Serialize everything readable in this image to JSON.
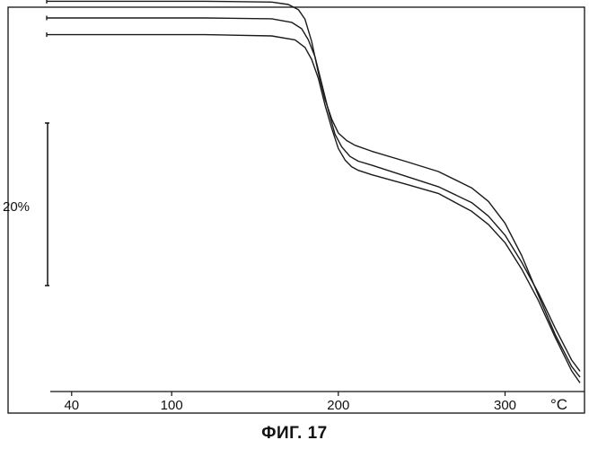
{
  "caption": "ФИГ. 17",
  "chart_data": {
    "type": "line",
    "title": "",
    "xlabel": "",
    "ylabel": "",
    "x_unit": "°C",
    "x_ticks": [
      40,
      100,
      200,
      300
    ],
    "x_tick_labels": [
      "40",
      "100",
      "200",
      "300"
    ],
    "xlim": [
      25,
      345
    ],
    "y_scale_bar": {
      "label": "20%",
      "value_percent": 20
    },
    "ylim": [
      0,
      100
    ],
    "grid": false,
    "legend": "none",
    "colors": {
      "line": "#1a1a1a",
      "axis": "#111111"
    },
    "series": [
      {
        "x": [
          25,
          40,
          80,
          120,
          160,
          170,
          176,
          180,
          184,
          188,
          192,
          196,
          200,
          205,
          210,
          220,
          240,
          260,
          280,
          290,
          300,
          310,
          320,
          330,
          340,
          345
        ],
        "values": [
          98.1,
          98.1,
          98.1,
          98.1,
          97.9,
          97.3,
          96.0,
          93.6,
          88.0,
          80.1,
          73.4,
          68.5,
          65.0,
          63.1,
          61.9,
          60.4,
          57.9,
          55.3,
          51.2,
          47.8,
          42.3,
          34.2,
          24.2,
          14.4,
          6.3,
          3.6
        ]
      },
      {
        "x": [
          25,
          40,
          80,
          120,
          160,
          172,
          178,
          182,
          186,
          190,
          194,
          198,
          202,
          207,
          212,
          220,
          240,
          260,
          280,
          290,
          300,
          310,
          320,
          330,
          340,
          345
        ],
        "values": [
          93.9,
          93.9,
          93.9,
          93.9,
          93.7,
          92.8,
          91.2,
          88.4,
          84.1,
          77.4,
          70.7,
          64.7,
          61.5,
          59.1,
          57.9,
          56.9,
          54.2,
          51.5,
          47.5,
          44.1,
          39.3,
          32.5,
          24.8,
          16.0,
          7.9,
          5.1
        ]
      },
      {
        "x": [
          25,
          40,
          80,
          120,
          160,
          174,
          180,
          184,
          188,
          192,
          196,
          200,
          204,
          208,
          212,
          220,
          240,
          260,
          280,
          290,
          300,
          310,
          320,
          330,
          340,
          345
        ],
        "values": [
          89.7,
          89.7,
          89.7,
          89.7,
          89.4,
          88.4,
          86.5,
          83.5,
          78.7,
          72.0,
          66.2,
          61.1,
          58.2,
          56.5,
          55.6,
          54.5,
          52.2,
          49.8,
          45.3,
          42.0,
          37.4,
          30.8,
          22.9,
          13.7,
          5.2,
          2.2
        ]
      }
    ]
  }
}
